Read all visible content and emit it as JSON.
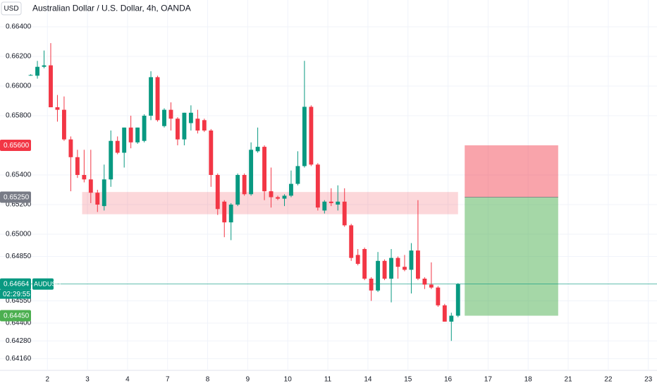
{
  "chart_data": {
    "type": "candlestick",
    "title": "Australian Dollar / U.S. Dollar, 4h, OANDA",
    "currency": "USD",
    "symbol": "AUDUSD",
    "countdown": "02:29:55",
    "up_color": "#089981",
    "down_color": "#f23645",
    "grid": true,
    "open": [
      0.66075,
      0.6607,
      0.6613,
      0.6614,
      0.65857,
      0.6584,
      0.6564,
      0.6552,
      0.654,
      0.6537,
      0.6528,
      0.6519,
      0.6537,
      0.6563,
      0.6555,
      0.6572,
      0.6562,
      0.6563,
      0.658,
      0.6606,
      0.6573,
      0.6584,
      0.6578,
      0.6564,
      0.6575,
      0.6578,
      0.6577,
      0.657,
      0.654,
      0.6522,
      0.6508,
      0.652,
      0.654,
      0.6527,
      0.6556,
      0.6559,
      0.6529,
      0.6525,
      0.6524,
      0.6526,
      0.6534,
      0.6546,
      0.6586,
      0.6547,
      0.6516,
      0.6522,
      0.652,
      0.6522,
      0.6506,
      0.6486,
      0.649,
      0.647,
      0.6462,
      0.6482,
      0.647,
      0.6484,
      0.6478,
      0.6476,
      0.6489,
      0.647,
      0.6466,
      0.6464,
      0.6452,
      0.6441,
      0.6445
    ],
    "high": [
      0.6608,
      0.6617,
      0.6624,
      0.6629,
      0.6594,
      0.6593,
      0.6566,
      0.6557,
      0.6557,
      0.6557,
      0.653,
      0.6547,
      0.657,
      0.6566,
      0.6572,
      0.658,
      0.6572,
      0.6581,
      0.661,
      0.6607,
      0.6585,
      0.6589,
      0.6579,
      0.6582,
      0.6587,
      0.6584,
      0.6578,
      0.6571,
      0.6541,
      0.6523,
      0.6521,
      0.6541,
      0.6541,
      0.6562,
      0.6572,
      0.656,
      0.6545,
      0.6526,
      0.6527,
      0.6543,
      0.6556,
      0.6617,
      0.6587,
      0.6548,
      0.6523,
      0.6531,
      0.6533,
      0.6531,
      0.6507,
      0.649,
      0.6491,
      0.6471,
      0.6488,
      0.6483,
      0.649,
      0.6485,
      0.6486,
      0.6494,
      0.6523,
      0.6471,
      0.6481,
      0.6465,
      0.6453,
      0.6447,
      0.6467
    ],
    "low": [
      0.6607,
      0.6605,
      0.6612,
      0.65857,
      0.6576,
      0.6563,
      0.6529,
      0.6538,
      0.6535,
      0.6521,
      0.6515,
      0.6516,
      0.6532,
      0.6554,
      0.6545,
      0.6558,
      0.6561,
      0.6562,
      0.6577,
      0.6576,
      0.6572,
      0.657,
      0.656,
      0.656,
      0.657,
      0.6568,
      0.6569,
      0.6532,
      0.6513,
      0.6498,
      0.6496,
      0.6519,
      0.6526,
      0.6526,
      0.6555,
      0.6523,
      0.6518,
      0.6523,
      0.6519,
      0.6525,
      0.6533,
      0.6545,
      0.6546,
      0.6516,
      0.6514,
      0.6519,
      0.6516,
      0.6505,
      0.6482,
      0.6479,
      0.6469,
      0.6455,
      0.6461,
      0.6469,
      0.6454,
      0.647,
      0.6475,
      0.646,
      0.6469,
      0.6463,
      0.6463,
      0.6451,
      0.6441,
      0.6428,
      0.6444
    ],
    "close": [
      0.66075,
      0.6613,
      0.6614,
      0.65857,
      0.6584,
      0.6564,
      0.6552,
      0.654,
      0.6537,
      0.6528,
      0.652,
      0.6537,
      0.6563,
      0.6555,
      0.6572,
      0.6562,
      0.6572,
      0.658,
      0.6606,
      0.6577,
      0.6584,
      0.6578,
      0.6564,
      0.6582,
      0.6582,
      0.657,
      0.657,
      0.654,
      0.6517,
      0.6508,
      0.652,
      0.654,
      0.6527,
      0.6557,
      0.6559,
      0.6529,
      0.6525,
      0.6524,
      0.6526,
      0.6534,
      0.6546,
      0.6586,
      0.6547,
      0.6518,
      0.6522,
      0.6521,
      0.6522,
      0.6506,
      0.6484,
      0.648,
      0.647,
      0.6462,
      0.6482,
      0.647,
      0.6484,
      0.6478,
      0.6476,
      0.6489,
      0.647,
      0.6466,
      0.6464,
      0.6452,
      0.6441,
      0.6445,
      0.64664
    ],
    "xlim": [
      -4.6,
      93.8
    ],
    "ylim": [
      0.64081,
      0.66581
    ],
    "xticks": [
      {
        "value": 2.5,
        "label": "2"
      },
      {
        "value": 8.5,
        "label": "3"
      },
      {
        "value": 14.5,
        "label": "4"
      },
      {
        "value": 20.5,
        "label": "7"
      },
      {
        "value": 26.5,
        "label": "8"
      },
      {
        "value": 32.5,
        "label": "9"
      },
      {
        "value": 38.5,
        "label": "10"
      },
      {
        "value": 44.5,
        "label": "11"
      },
      {
        "value": 50.5,
        "label": "14"
      },
      {
        "value": 56.5,
        "label": "15"
      },
      {
        "value": 62.5,
        "label": "16"
      },
      {
        "value": 68.5,
        "label": "17"
      },
      {
        "value": 74.5,
        "label": "18"
      },
      {
        "value": 80.5,
        "label": "21"
      },
      {
        "value": 86.5,
        "label": "22"
      },
      {
        "value": 92.5,
        "label": "23"
      }
    ],
    "yticks": [
      {
        "value": 0.664,
        "label": "0.66400"
      },
      {
        "value": 0.662,
        "label": "0.66200"
      },
      {
        "value": 0.66,
        "label": "0.66000"
      },
      {
        "value": 0.658,
        "label": "0.65800"
      },
      {
        "value": 0.654,
        "label": "0.65400"
      },
      {
        "value": 0.652,
        "label": "0.65200"
      },
      {
        "value": 0.65,
        "label": "0.65000"
      },
      {
        "value": 0.6485,
        "label": "0.64850"
      },
      {
        "value": 0.6455,
        "label": "0.64550"
      },
      {
        "value": 0.644,
        "label": "0.64400"
      },
      {
        "value": 0.6428,
        "label": "0.64280"
      },
      {
        "value": 0.6416,
        "label": "0.64160"
      }
    ],
    "last_price": {
      "value": 0.64664,
      "label": "0.64664"
    },
    "zone": {
      "x": [
        7.7,
        64
      ],
      "y": [
        0.65135,
        0.65285
      ]
    },
    "position": {
      "x": [
        65,
        79
      ],
      "stop": {
        "value": 0.656,
        "label": "0.65600"
      },
      "entry": {
        "value": 0.6525,
        "label": "0.65250"
      },
      "target": {
        "value": 0.6445,
        "label": "0.64450"
      }
    }
  }
}
